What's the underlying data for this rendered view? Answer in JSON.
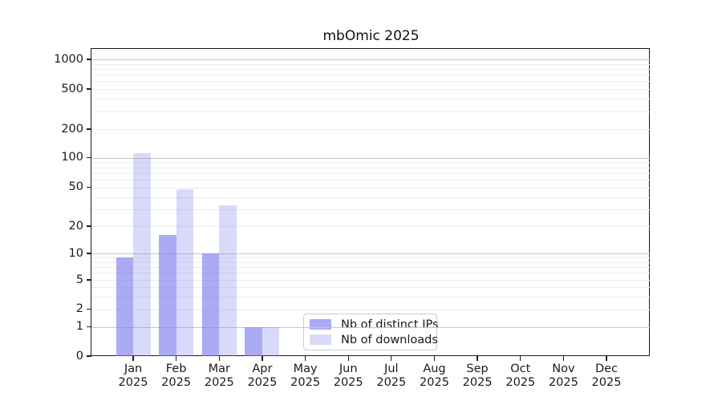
{
  "title": "mbOmic 2025",
  "year_label": "2025",
  "colors": {
    "bar_distinct_ips": "rgba(120,120,236,0.62)",
    "bar_downloads": "rgba(120,120,236,0.28)",
    "bar_distinct_ips_flat": "#a8a8f2",
    "bar_downloads_flat": "#dcdcf8",
    "grid_major": "#c6c6c6",
    "grid_minor": "#ededed",
    "axis": "#1a1a1a"
  },
  "legend": {
    "entries": [
      {
        "label": "Nb of distinct IPs",
        "series": "distinct_ips"
      },
      {
        "label": "Nb of downloads",
        "series": "downloads"
      }
    ]
  },
  "chart_data": {
    "type": "bar",
    "title": "mbOmic 2025",
    "categories": [
      "Jan 2025",
      "Feb 2025",
      "Mar 2025",
      "Apr 2025",
      "May 2025",
      "Jun 2025",
      "Jul 2025",
      "Aug 2025",
      "Sep 2025",
      "Oct 2025",
      "Nov 2025",
      "Dec 2025"
    ],
    "months": [
      "Jan",
      "Feb",
      "Mar",
      "Apr",
      "May",
      "Jun",
      "Jul",
      "Aug",
      "Sep",
      "Oct",
      "Nov",
      "Dec"
    ],
    "series": [
      {
        "name": "Nb of distinct IPs",
        "values": [
          9,
          16,
          10,
          1,
          0,
          0,
          0,
          0,
          0,
          0,
          0,
          0
        ]
      },
      {
        "name": "Nb of downloads",
        "values": [
          112,
          48,
          33,
          1,
          0,
          0,
          0,
          0,
          0,
          0,
          0,
          0
        ]
      }
    ],
    "xlabel": "",
    "ylabel": "",
    "yscale": "symlog",
    "yticks": [
      0,
      1,
      2,
      5,
      10,
      20,
      50,
      100,
      200,
      500,
      1000
    ],
    "ylim": [
      0,
      1400
    ],
    "grid": "horizontal major + minor",
    "legend_position": "inside lower-center-left"
  }
}
